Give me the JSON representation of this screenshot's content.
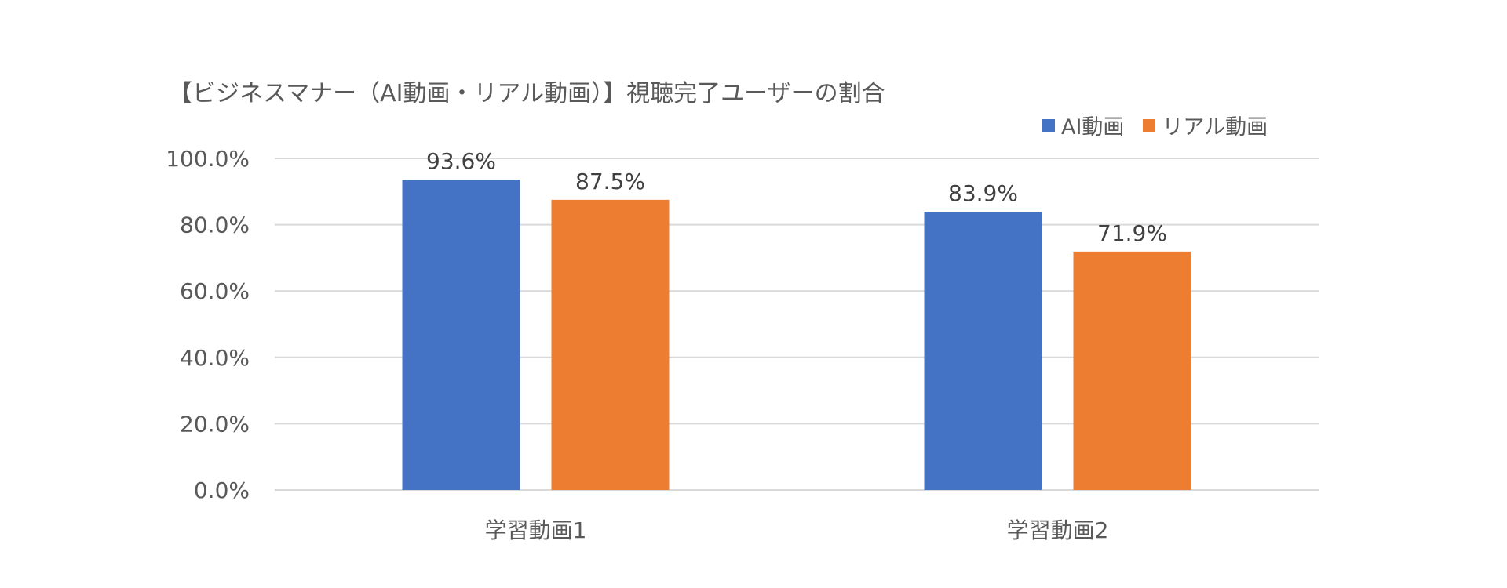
{
  "title": "【ビジネスマナー（AI動画・リアル動画）】視聴完了ユーザーの割合",
  "chart_data": {
    "type": "bar",
    "title": "【ビジネスマナー（AI動画・リアル動画）】視聴完了ユーザーの割合",
    "categories": [
      "学習動画1",
      "学習動画2"
    ],
    "series": [
      {
        "name": "AI動画",
        "values": [
          93.6,
          83.9
        ],
        "labels": [
          "93.6%",
          "83.9%"
        ],
        "color": "#4472C4"
      },
      {
        "name": "リアル動画",
        "values": [
          87.5,
          71.9
        ],
        "labels": [
          "87.5%",
          "71.9%"
        ],
        "color": "#ED7D31"
      }
    ],
    "ylim": [
      0,
      100
    ],
    "yticks": [
      "0.0%",
      "20.0%",
      "40.0%",
      "60.0%",
      "80.0%",
      "100.0%"
    ],
    "ytick_values": [
      0,
      20,
      40,
      60,
      80,
      100
    ],
    "grid": true,
    "legend_position": "top-right"
  }
}
